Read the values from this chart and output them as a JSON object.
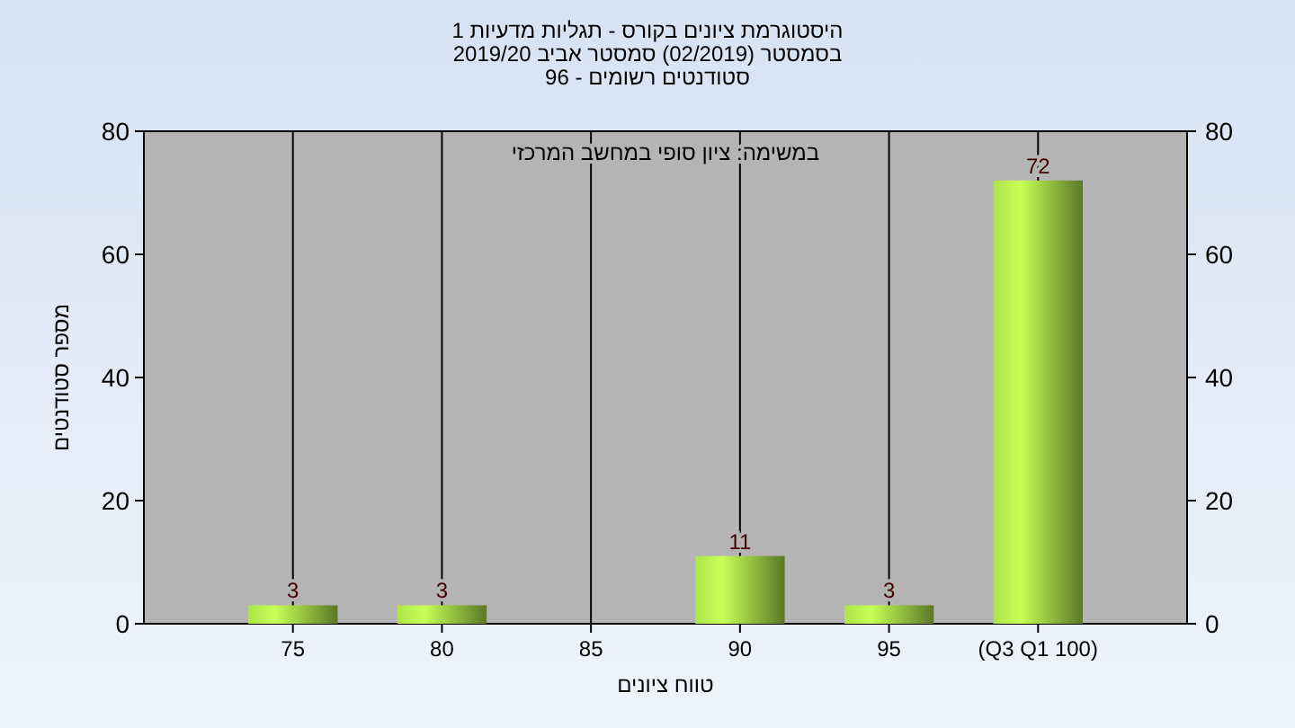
{
  "chart_data": {
    "type": "bar",
    "title": "היסטוגרמת ציונים בקורס - תגליות מדעיות 1\nבסמסטר  (02/2019)  סמסטר אביב 2019/20\nסטודנטים רשומים - 96",
    "annotations": [
      "במשימה: ציון סופי במחשב המרכזי"
    ],
    "xlabel": "טווח ציונים",
    "ylabel": "מספר סטודנטים",
    "categories": [
      "75",
      "80",
      "85",
      "90",
      "95",
      "(Q3 Q1 100)"
    ],
    "values": [
      3,
      3,
      null,
      11,
      3,
      72
    ],
    "color": "#8cb83c",
    "ylim": [
      0,
      80
    ],
    "yticks": [
      0,
      20,
      40,
      60,
      80
    ],
    "y2lim": [
      0,
      80
    ],
    "y2ticks": [
      0,
      20,
      40,
      60,
      80
    ],
    "grid": "x",
    "data_labels": true
  }
}
